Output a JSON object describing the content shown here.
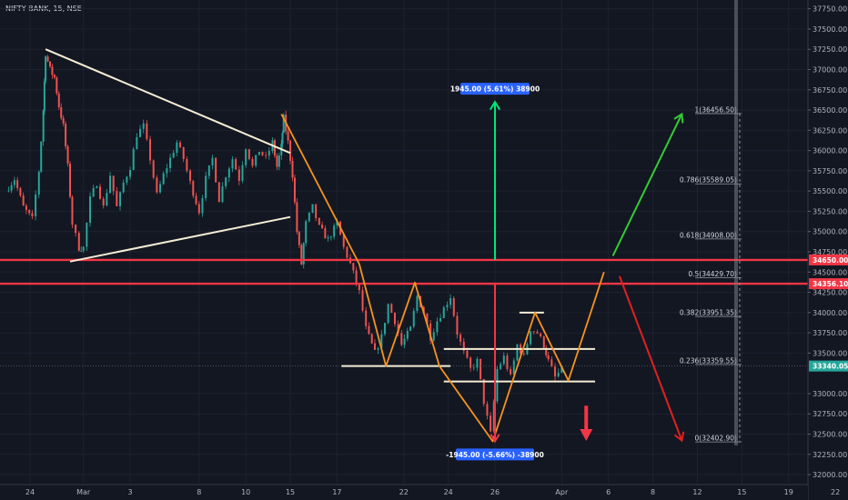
{
  "header": {
    "title": "NIFTY BANK, 15, NSE"
  },
  "chart_data": {
    "type": "candlestick",
    "symbol": "NIFTY BANK",
    "interval": "15",
    "exchange": "NSE",
    "title": "NIFTY BANK, 15, NSE",
    "ylim": [
      31950,
      37800
    ],
    "y_ticks": [
      {
        "value": 37750,
        "label": "37750.00"
      },
      {
        "value": 37500,
        "label": "37500.00"
      },
      {
        "value": 37250,
        "label": "37250.00"
      },
      {
        "value": 37000,
        "label": "37000.00"
      },
      {
        "value": 36750,
        "label": "36750.00"
      },
      {
        "value": 36500,
        "label": "36500.00"
      },
      {
        "value": 36250,
        "label": "36250.00"
      },
      {
        "value": 36000,
        "label": "36000.00"
      },
      {
        "value": 35750,
        "label": "35750.00"
      },
      {
        "value": 35500,
        "label": "35500.00"
      },
      {
        "value": 35250,
        "label": "35250.00"
      },
      {
        "value": 35000,
        "label": "35000.00"
      },
      {
        "value": 34750,
        "label": "34750.00"
      },
      {
        "value": 34500,
        "label": "34500.00"
      },
      {
        "value": 34250,
        "label": "34250.00"
      },
      {
        "value": 34000,
        "label": "34000.00"
      },
      {
        "value": 33750,
        "label": "33750.00"
      },
      {
        "value": 33500,
        "label": "33500.00"
      },
      {
        "value": 33000,
        "label": "33000.00"
      },
      {
        "value": 32750,
        "label": "32750.00"
      },
      {
        "value": 32500,
        "label": "32500.00"
      },
      {
        "value": 32250,
        "label": "32250.00"
      },
      {
        "value": 32000,
        "label": "32000.00"
      }
    ],
    "x_ticks": [
      {
        "idx": 0,
        "label": "24"
      },
      {
        "idx": 2.4,
        "label": "Mar"
      },
      {
        "idx": 4.5,
        "label": "3"
      },
      {
        "idx": 7.6,
        "label": "8"
      },
      {
        "idx": 9.7,
        "label": "10"
      },
      {
        "idx": 11.7,
        "label": "15"
      },
      {
        "idx": 13.8,
        "label": "17"
      },
      {
        "idx": 16.8,
        "label": "22"
      },
      {
        "idx": 18.8,
        "label": "24"
      },
      {
        "idx": 20.9,
        "label": "26"
      },
      {
        "idx": 23.9,
        "label": "Apr"
      },
      {
        "idx": 26,
        "label": "6"
      },
      {
        "idx": 28,
        "label": "8"
      },
      {
        "idx": 30,
        "label": "12"
      },
      {
        "idx": 32,
        "label": "15"
      },
      {
        "idx": 34.1,
        "label": "19"
      },
      {
        "idx": 36.2,
        "label": "22"
      }
    ],
    "price_path": [
      [
        -1.1,
        35500
      ],
      [
        -0.7,
        35650
      ],
      [
        -0.3,
        35300
      ],
      [
        0.1,
        35150
      ],
      [
        0.4,
        35750
      ],
      [
        0.6,
        36500
      ],
      [
        0.7,
        37200
      ],
      [
        0.9,
        37000
      ],
      [
        1.1,
        36900
      ],
      [
        1.3,
        36550
      ],
      [
        1.5,
        36300
      ],
      [
        1.7,
        35800
      ],
      [
        1.9,
        35100
      ],
      [
        2.2,
        34800
      ],
      [
        2.4,
        34800
      ],
      [
        2.7,
        35400
      ],
      [
        3.0,
        35600
      ],
      [
        3.3,
        35300
      ],
      [
        3.6,
        35700
      ],
      [
        3.9,
        35300
      ],
      [
        4.2,
        35600
      ],
      [
        4.5,
        35800
      ],
      [
        4.8,
        36200
      ],
      [
        5.1,
        36300
      ],
      [
        5.4,
        35900
      ],
      [
        5.7,
        35450
      ],
      [
        6.0,
        35700
      ],
      [
        6.3,
        35900
      ],
      [
        6.6,
        36100
      ],
      [
        6.9,
        35900
      ],
      [
        7.2,
        35600
      ],
      [
        7.6,
        35250
      ],
      [
        7.9,
        35650
      ],
      [
        8.2,
        35900
      ],
      [
        8.5,
        35400
      ],
      [
        8.8,
        35700
      ],
      [
        9.1,
        35900
      ],
      [
        9.4,
        35650
      ],
      [
        9.7,
        36050
      ],
      [
        10.0,
        35800
      ],
      [
        10.3,
        36000
      ],
      [
        10.6,
        35900
      ],
      [
        10.9,
        36100
      ],
      [
        11.1,
        35800
      ],
      [
        11.3,
        36050
      ],
      [
        11.4,
        36400
      ],
      [
        11.6,
        36100
      ],
      [
        11.8,
        35700
      ],
      [
        12.0,
        35000
      ],
      [
        12.2,
        34600
      ],
      [
        12.4,
        35100
      ],
      [
        12.7,
        35300
      ],
      [
        13.0,
        35050
      ],
      [
        13.4,
        34900
      ],
      [
        13.8,
        35100
      ],
      [
        14.1,
        34800
      ],
      [
        14.4,
        34600
      ],
      [
        14.8,
        34250
      ],
      [
        15.1,
        33800
      ],
      [
        15.5,
        33500
      ],
      [
        15.8,
        33700
      ],
      [
        16.1,
        34100
      ],
      [
        16.4,
        33900
      ],
      [
        16.7,
        33600
      ],
      [
        17.1,
        33800
      ],
      [
        17.4,
        34200
      ],
      [
        17.7,
        34000
      ],
      [
        18.0,
        33700
      ],
      [
        18.3,
        33900
      ],
      [
        18.6,
        34050
      ],
      [
        18.9,
        34200
      ],
      [
        19.2,
        33750
      ],
      [
        19.5,
        33500
      ],
      [
        19.8,
        33300
      ],
      [
        20.1,
        33400
      ],
      [
        20.4,
        32900
      ],
      [
        20.7,
        32500
      ],
      [
        21.0,
        33300
      ],
      [
        21.3,
        33450
      ],
      [
        21.6,
        33200
      ],
      [
        21.9,
        33600
      ],
      [
        22.2,
        33450
      ],
      [
        22.5,
        33800
      ],
      [
        22.8,
        33750
      ],
      [
        23.1,
        33600
      ],
      [
        23.3,
        33400
      ],
      [
        23.6,
        33200
      ],
      [
        23.9,
        33300
      ]
    ],
    "trendlines": [
      {
        "role": "triangle-upper",
        "from": [
          0.7,
          37250
        ],
        "to": [
          11.7,
          35970
        ],
        "color": "#f5edd4"
      },
      {
        "role": "triangle-lower",
        "from": [
          1.8,
          34630
        ],
        "to": [
          11.7,
          35180
        ],
        "color": "#f5edd4"
      },
      {
        "role": "support-1",
        "from": [
          14.0,
          33340
        ],
        "to": [
          18.9,
          33340
        ],
        "color": "#f5edd4"
      },
      {
        "role": "range-top",
        "from": [
          18.6,
          33550
        ],
        "to": [
          25.4,
          33550
        ],
        "color": "#f5edd4"
      },
      {
        "role": "range-bottom",
        "from": [
          18.6,
          33150
        ],
        "to": [
          25.4,
          33150
        ],
        "color": "#f5edd4"
      },
      {
        "role": "neckline",
        "from": [
          22.0,
          34000
        ],
        "to": [
          23.1,
          34000
        ],
        "color": "#f5edd4"
      }
    ],
    "wave_path": {
      "color": "#f7931e",
      "points": [
        [
          11.3,
          36450
        ],
        [
          14.8,
          34600
        ],
        [
          16.0,
          33340
        ],
        [
          17.3,
          34370
        ],
        [
          18.4,
          33340
        ],
        [
          20.8,
          32410
        ],
        [
          22.7,
          34000
        ],
        [
          24.2,
          33160
        ],
        [
          25.8,
          34500
        ]
      ]
    },
    "projection_arrows": [
      {
        "role": "bullish-target",
        "from": [
          26.2,
          34700
        ],
        "to": [
          29.3,
          36450
        ],
        "color": "#33cc33"
      },
      {
        "role": "bearish-target",
        "from": [
          26.5,
          34450
        ],
        "to": [
          29.3,
          32420
        ],
        "color": "#e02020"
      }
    ],
    "horizontal_lines": [
      {
        "value": 34650,
        "label": "34650.00",
        "color": "#f23645"
      },
      {
        "value": 34356.1,
        "label": "34356.10",
        "color": "#f23645"
      }
    ],
    "last_price": {
      "value": 33340.05,
      "label": "33340.05",
      "color": "#26a69a"
    },
    "measure_up": {
      "x": 20.9,
      "from": 34650,
      "to": 36600,
      "label": "1945.00 (5.61%) 38900",
      "color": "#00e676"
    },
    "measure_down": {
      "x": 20.9,
      "from": 34356.1,
      "to": 32411,
      "label": "-1945.00 (-5.66%) -38900",
      "color": "#f23645"
    },
    "down_arrow": {
      "x": 25.0,
      "from": 32850,
      "to": 32450,
      "color": "#f23645"
    },
    "fibonacci": {
      "x_start": 29.9,
      "x_end": 31.9,
      "levels": [
        {
          "ratio": "1",
          "value": 36456.5,
          "label": "1(36456.50)"
        },
        {
          "ratio": "0.786",
          "value": 35589.05,
          "label": "0.786(35589.05)"
        },
        {
          "ratio": "0.618",
          "value": 34908.0,
          "label": "0.618(34908.00)"
        },
        {
          "ratio": "0.5",
          "value": 34429.7,
          "label": "0.5(34429.70)"
        },
        {
          "ratio": "0.382",
          "value": 33951.35,
          "label": "0.382(33951.35)"
        },
        {
          "ratio": "0.236",
          "value": 33359.55,
          "label": "0.236(33359.55)"
        },
        {
          "ratio": "0",
          "value": 32402.9,
          "label": "0(32402.90)"
        }
      ]
    },
    "colors": {
      "background": "#131722",
      "grid": "#1e2230",
      "up_candle": "#26a69a",
      "down_candle": "#ef5350",
      "axis_text": "#b2b5be"
    }
  }
}
